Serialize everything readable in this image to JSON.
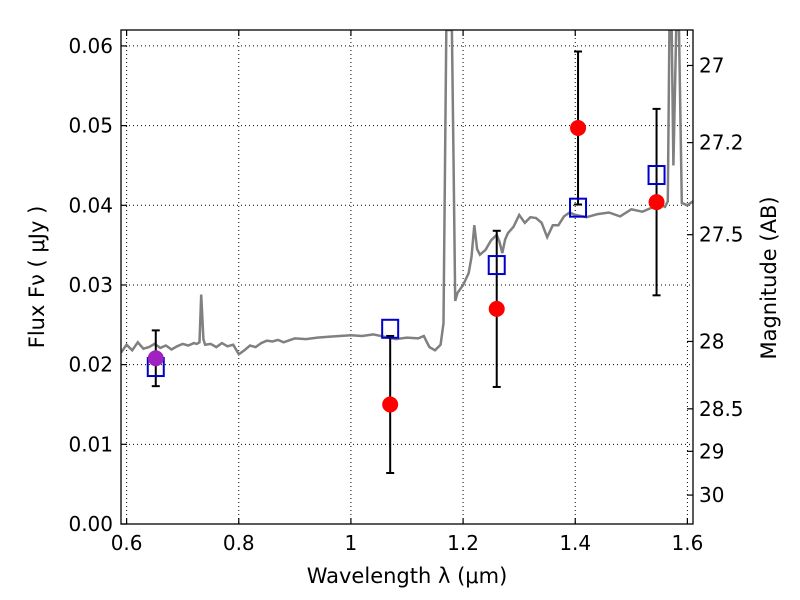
{
  "chart_data": {
    "type": "scatter",
    "title": "",
    "xlabel": "Wavelength  λ (μm)",
    "ylabel": "Flux  Fν  ( μJy )",
    "y2label": "Magnitude (AB)",
    "xlim": [
      0.59,
      1.61
    ],
    "ylim": [
      0.0,
      0.062
    ],
    "grid": true,
    "x_ticks": [
      0.6,
      0.8,
      1.0,
      1.2,
      1.4,
      1.6
    ],
    "x_tick_labels": [
      "0.6",
      "0.8",
      "1",
      "1.2",
      "1.4",
      "1.6"
    ],
    "y_ticks": [
      0.0,
      0.01,
      0.02,
      0.03,
      0.04,
      0.05,
      0.06
    ],
    "y_tick_labels": [
      "0.00",
      "0.01",
      "0.02",
      "0.03",
      "0.04",
      "0.05",
      "0.06"
    ],
    "y2_ticks": [
      27,
      27.2,
      27.5,
      28,
      28.5,
      29,
      30
    ],
    "y2_tick_labels": [
      "27",
      "27.2",
      "27.5",
      "28",
      "28.5",
      "29",
      "30"
    ],
    "colors": {
      "model": "#808080",
      "observed": "#ff0000",
      "observed_purple": "#a020c0",
      "model_points": "#0000cc",
      "errorbar": "#000000",
      "grid": "#000000"
    },
    "model_spectrum": {
      "x": [
        0.59,
        0.6,
        0.61,
        0.62,
        0.63,
        0.64,
        0.65,
        0.66,
        0.67,
        0.68,
        0.69,
        0.7,
        0.71,
        0.72,
        0.725,
        0.73,
        0.733,
        0.737,
        0.74,
        0.75,
        0.76,
        0.77,
        0.78,
        0.79,
        0.8,
        0.81,
        0.82,
        0.83,
        0.84,
        0.85,
        0.86,
        0.87,
        0.88,
        0.9,
        0.92,
        0.94,
        0.96,
        0.98,
        1.0,
        1.02,
        1.04,
        1.06,
        1.08,
        1.1,
        1.12,
        1.13,
        1.14,
        1.15,
        1.16,
        1.165,
        1.17,
        1.173,
        1.176,
        1.18,
        1.183,
        1.186,
        1.19,
        1.2,
        1.21,
        1.215,
        1.22,
        1.225,
        1.23,
        1.24,
        1.25,
        1.26,
        1.265,
        1.27,
        1.275,
        1.28,
        1.29,
        1.3,
        1.31,
        1.32,
        1.33,
        1.34,
        1.35,
        1.36,
        1.37,
        1.38,
        1.39,
        1.4,
        1.42,
        1.44,
        1.46,
        1.48,
        1.5,
        1.52,
        1.54,
        1.55,
        1.56,
        1.565,
        1.568,
        1.572,
        1.575,
        1.58,
        1.585,
        1.59,
        1.6,
        1.61
      ],
      "y": [
        0.0215,
        0.0225,
        0.0218,
        0.0228,
        0.022,
        0.0222,
        0.0226,
        0.0221,
        0.0224,
        0.0219,
        0.0223,
        0.0226,
        0.0224,
        0.0227,
        0.0226,
        0.0228,
        0.0288,
        0.0232,
        0.0225,
        0.0226,
        0.0222,
        0.0227,
        0.0223,
        0.0225,
        0.0213,
        0.0218,
        0.0224,
        0.0222,
        0.0227,
        0.023,
        0.0229,
        0.0231,
        0.0228,
        0.0233,
        0.0232,
        0.0234,
        0.0235,
        0.0236,
        0.0237,
        0.0236,
        0.0238,
        0.0235,
        0.0232,
        0.0234,
        0.0233,
        0.0236,
        0.0222,
        0.0218,
        0.0225,
        0.0252,
        0.062,
        0.062,
        0.062,
        0.062,
        0.046,
        0.028,
        0.029,
        0.03,
        0.0315,
        0.0335,
        0.0375,
        0.0345,
        0.0338,
        0.0344,
        0.0356,
        0.0363,
        0.0354,
        0.034,
        0.0357,
        0.0365,
        0.0373,
        0.0388,
        0.0378,
        0.0385,
        0.0384,
        0.0378,
        0.036,
        0.0375,
        0.0375,
        0.0386,
        0.0391,
        0.0388,
        0.0385,
        0.0389,
        0.0391,
        0.0386,
        0.0395,
        0.0392,
        0.0398,
        0.0401,
        0.0398,
        0.0405,
        0.062,
        0.062,
        0.045,
        0.062,
        0.062,
        0.0403,
        0.04,
        0.0405
      ]
    },
    "observed_points": [
      {
        "x": 0.652,
        "y": 0.0208,
        "yerr": 0.0035,
        "color": "#a020c0"
      },
      {
        "x": 1.07,
        "y": 0.015,
        "yerr": 0.0086,
        "color": "#ff0000"
      },
      {
        "x": 1.26,
        "y": 0.027,
        "yerr": 0.0098,
        "color": "#ff0000"
      },
      {
        "x": 1.405,
        "y": 0.0497,
        "yerr": 0.0096,
        "color": "#ff0000"
      },
      {
        "x": 1.545,
        "y": 0.0404,
        "yerr": 0.0117,
        "color": "#ff0000"
      }
    ],
    "model_points": [
      {
        "x": 0.652,
        "y": 0.0197
      },
      {
        "x": 1.07,
        "y": 0.0245
      },
      {
        "x": 1.26,
        "y": 0.0325
      },
      {
        "x": 1.405,
        "y": 0.0397
      },
      {
        "x": 1.545,
        "y": 0.0438
      }
    ]
  }
}
